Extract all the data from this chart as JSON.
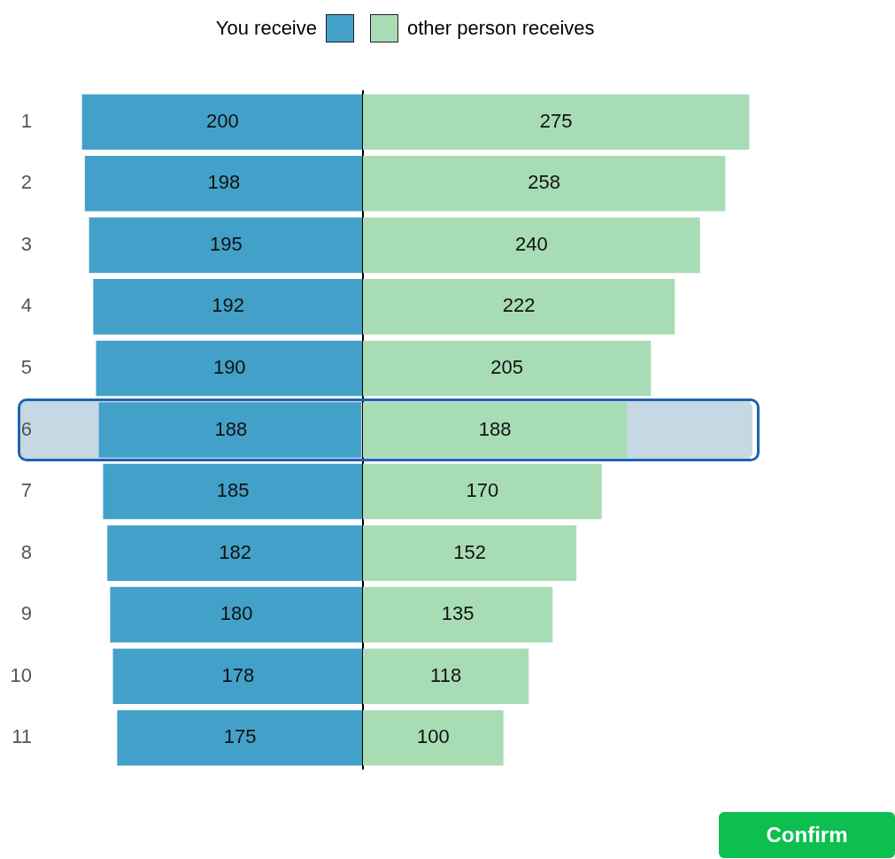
{
  "chart_data": [
    {
      "type": "bar",
      "orientation": "horizontal",
      "categories": [
        "1",
        "2",
        "3",
        "4",
        "5",
        "6",
        "7",
        "8",
        "9",
        "10",
        "11"
      ],
      "series": [
        {
          "name": "You receive",
          "color": "#43a1c9",
          "values": [
            200,
            198,
            195,
            192,
            190,
            188,
            185,
            182,
            180,
            178,
            175
          ]
        }
      ],
      "tick_labels": "y",
      "legend": "top right",
      "grid": false,
      "data_labels": true,
      "bands": [
        {
          "axis": "y",
          "from": "6",
          "to": "6",
          "color": "#c6d8e3"
        }
      ]
    },
    {
      "type": "bar",
      "orientation": "horizontal",
      "categories": [
        "1",
        "2",
        "3",
        "4",
        "5",
        "6",
        "7",
        "8",
        "9",
        "10",
        "11"
      ],
      "series": [
        {
          "name": "other person receives",
          "color": "#a8dcb5",
          "values": [
            275,
            258,
            240,
            222,
            205,
            188,
            170,
            152,
            135,
            118,
            100
          ]
        }
      ],
      "tick_labels": false,
      "legend": "top left",
      "grid": false,
      "data_labels": true,
      "bands": [
        {
          "axis": "y",
          "from": "6",
          "to": "6",
          "color": "#c6d8e3"
        }
      ],
      "annotations": [
        "Confirm"
      ]
    }
  ]
}
